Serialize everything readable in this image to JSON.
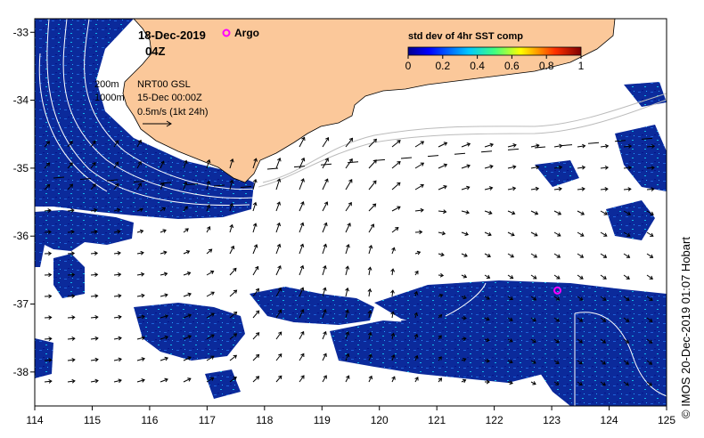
{
  "map": {
    "date": "18-Dec-2019",
    "time": "04Z",
    "argo_label": "Argo",
    "contour_labels": [
      "200m",
      "1000m"
    ],
    "current_source": "NRT00 GSL",
    "current_date": "15-Dec 00:00Z",
    "vector_scale": "0.5m/s (1kt 24h)",
    "legend": {
      "title": "std dev of 4hr SST comp",
      "ticks": [
        "0",
        "0.2",
        "0.4",
        "0.6",
        "0.8",
        "1"
      ]
    },
    "x_ticks": [
      "114",
      "115",
      "116",
      "117",
      "118",
      "119",
      "120",
      "121",
      "122",
      "123",
      "124",
      "125"
    ],
    "y_ticks": [
      "-33",
      "-34",
      "-35",
      "-36",
      "-37",
      "-38"
    ],
    "credit": "© IMOS 20-Dec-2019 01:07 Hobart",
    "argo_position": {
      "lon": 123.1,
      "lat": -36.8
    },
    "colors": {
      "land": "#fbc89a",
      "ocean_data": "#0b2a9b",
      "argo": "#ff00ff",
      "contour": "#ffffff"
    }
  }
}
